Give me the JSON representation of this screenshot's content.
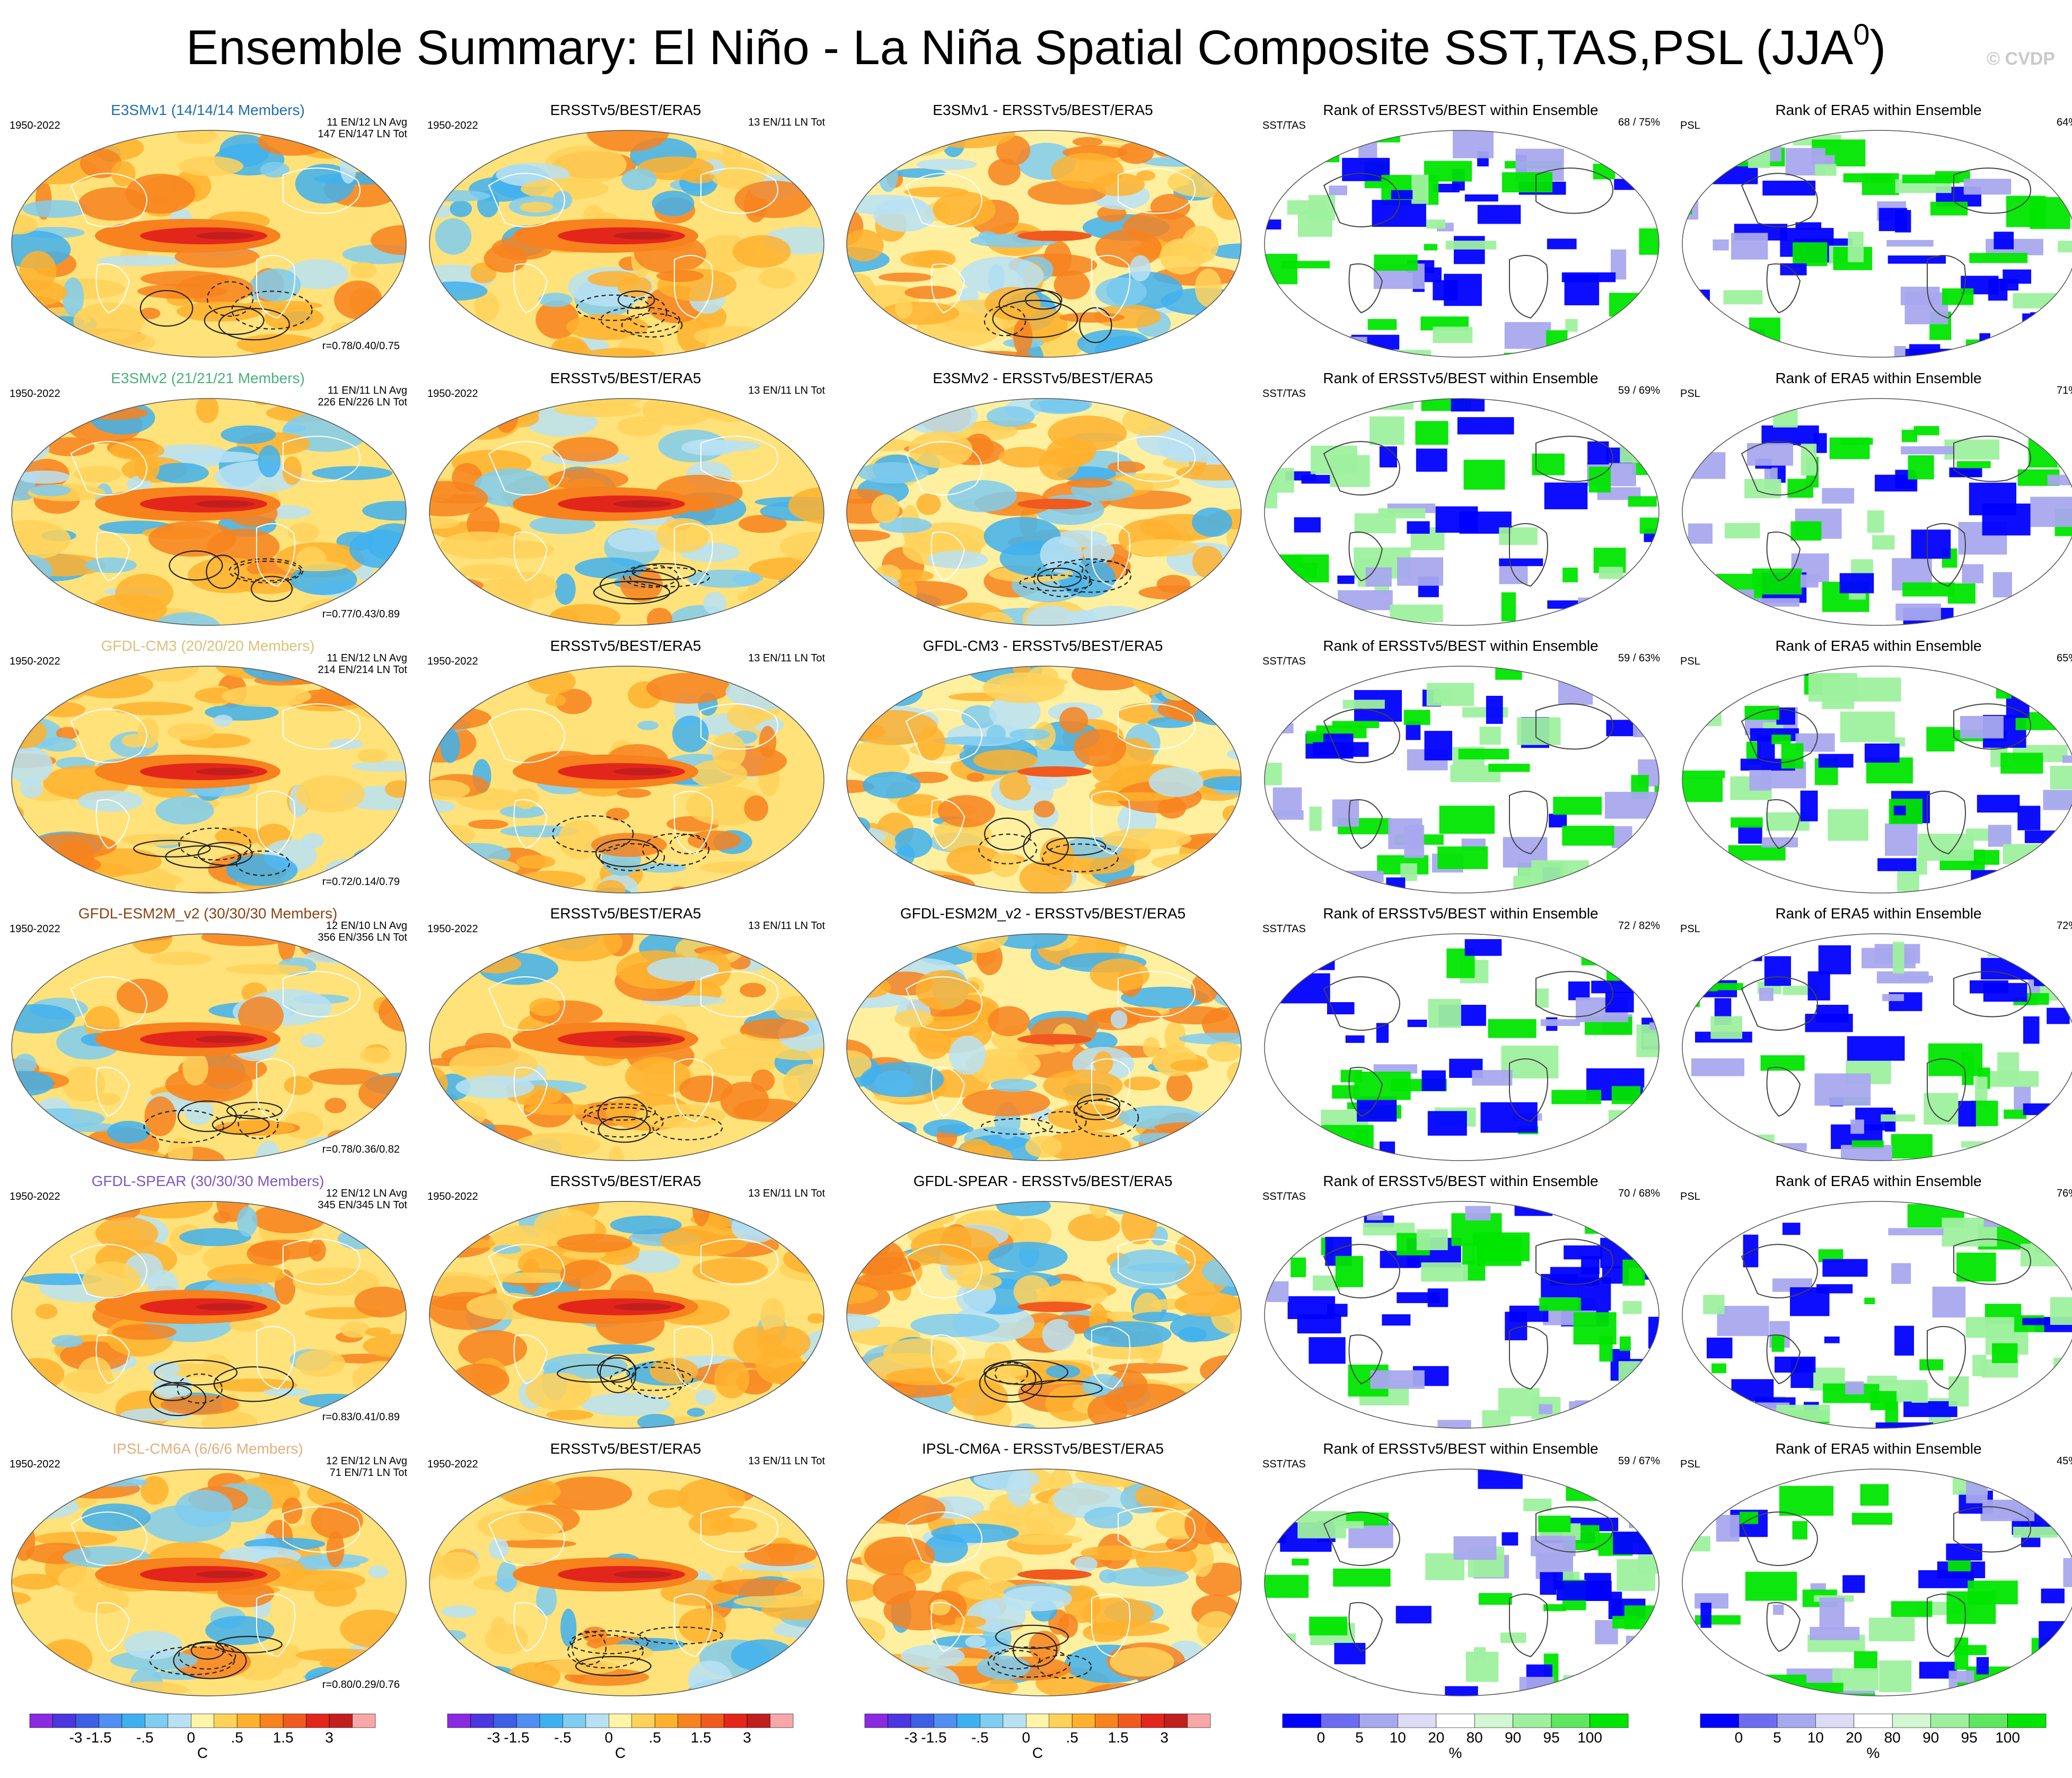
{
  "title": {
    "main": "Ensemble Summary: El Niño - La Niña Spatial Composite SST,TAS,PSL (JJA",
    "sup": "0",
    "close": ")"
  },
  "credit": "© CVDP",
  "column_titles": {
    "obs": "ERSSTv5/BEST/ERA5",
    "rank_sst": "Rank of ERSSTv5/BEST within Ensemble",
    "rank_psl": "Rank of ERA5 within Ensemble"
  },
  "period": "1950-2022",
  "obs_counts": "13 EN/11 LN Tot",
  "rank_labels": {
    "sst": "SST/TAS",
    "psl": "PSL"
  },
  "rows": [
    {
      "model": "E3SMv1",
      "model_title": "E3SMv1 (14/14/14 Members)",
      "title_color": "#1f6fa8",
      "avg": "11 EN/12 LN Avg",
      "tot": "147 EN/147 LN Tot",
      "r": "r=0.78/0.40/0.75",
      "diff_title": "E3SMv1 - ERSSTv5/BEST/ERA5",
      "rank_sst": "68 /  75%",
      "rank_psl": "64%"
    },
    {
      "model": "E3SMv2",
      "model_title": "E3SMv2 (21/21/21 Members)",
      "title_color": "#4caf7f",
      "avg": "11 EN/11 LN Avg",
      "tot": "226 EN/226 LN Tot",
      "r": "r=0.77/0.43/0.89",
      "diff_title": "E3SMv2 - ERSSTv5/BEST/ERA5",
      "rank_sst": "59 /  69%",
      "rank_psl": "71%"
    },
    {
      "model": "GFDL-CM3",
      "model_title": "GFDL-CM3 (20/20/20 Members)",
      "title_color": "#d9c27a",
      "avg": "11 EN/12 LN Avg",
      "tot": "214 EN/214 LN Tot",
      "r": "r=0.72/0.14/0.79",
      "diff_title": "GFDL-CM3 - ERSSTv5/BEST/ERA5",
      "rank_sst": "59 /  63%",
      "rank_psl": "65%"
    },
    {
      "model": "GFDL-ESM2M_v2",
      "model_title": "GFDL-ESM2M_v2 (30/30/30 Members)",
      "title_color": "#8b4513",
      "avg": "12 EN/10 LN Avg",
      "tot": "356 EN/356 LN Tot",
      "r": "r=0.78/0.36/0.82",
      "diff_title": "GFDL-ESM2M_v2 - ERSSTv5/BEST/ERA5",
      "rank_sst": "72 /  82%",
      "rank_psl": "72%"
    },
    {
      "model": "GFDL-SPEAR",
      "model_title": "GFDL-SPEAR (30/30/30 Members)",
      "title_color": "#7e57c2",
      "avg": "12 EN/12 LN Avg",
      "tot": "345 EN/345 LN Tot",
      "r": "r=0.83/0.41/0.89",
      "diff_title": "GFDL-SPEAR - ERSSTv5/BEST/ERA5",
      "rank_sst": "70 /  68%",
      "rank_psl": "76%"
    },
    {
      "model": "IPSL-CM6A",
      "model_title": "IPSL-CM6A (6/6/6 Members)",
      "title_color": "#e0b080",
      "avg": "12 EN/12 LN Avg",
      "tot": "71 EN/71 LN Tot",
      "r": "r=0.80/0.29/0.76",
      "diff_title": "IPSL-CM6A - ERSSTv5/BEST/ERA5",
      "rank_sst": "59 /  67%",
      "rank_psl": "45%"
    }
  ],
  "colorbars": {
    "temp": {
      "ticks": [
        "-3",
        "-1.5",
        "-.5",
        "0",
        ".5",
        "1.5",
        "3"
      ],
      "unit": "C",
      "colors": [
        "#8a2be2",
        "#4b36e0",
        "#3c5fe6",
        "#4f8ff2",
        "#3fb0ef",
        "#7fcdf0",
        "#b8e2f4",
        "#fff4a8",
        "#ffd25a",
        "#ffb12e",
        "#f7821e",
        "#f15a1e",
        "#e3261b",
        "#c21e1e",
        "#f7a7a7"
      ]
    },
    "rank": {
      "ticks": [
        "0",
        "5",
        "10",
        "20",
        "80",
        "90",
        "95",
        "100"
      ],
      "unit": "%",
      "colors": [
        "#0000ff",
        "#6c6cf2",
        "#a8a8ee",
        "#dcdcf6",
        "#ffffff",
        "#d2f7d2",
        "#9ef09e",
        "#5fe85f",
        "#00e600"
      ]
    }
  },
  "chart_data": {
    "type": "heatmap",
    "description_rows": [
      "E3SMv1",
      "E3SMv2",
      "GFDL-CM3",
      "GFDL-ESM2M_v2",
      "GFDL-SPEAR",
      "IPSL-CM6A"
    ],
    "pattern_correlations_sst_psl_tas": [
      [
        0.78,
        0.4,
        0.75
      ],
      [
        0.77,
        0.43,
        0.89
      ],
      [
        0.72,
        0.14,
        0.79
      ],
      [
        0.78,
        0.36,
        0.82
      ],
      [
        0.83,
        0.41,
        0.89
      ],
      [
        0.8,
        0.29,
        0.76
      ]
    ],
    "rank_sst_tas_pct": [
      [
        68,
        75
      ],
      [
        59,
        69
      ],
      [
        59,
        63
      ],
      [
        72,
        82
      ],
      [
        70,
        68
      ],
      [
        59,
        67
      ]
    ],
    "rank_psl_pct": [
      64,
      71,
      65,
      72,
      76,
      45
    ],
    "temp_levels_C": [
      -3,
      -2,
      -1.5,
      -1,
      -0.5,
      -0.25,
      0,
      0.25,
      0.5,
      1,
      1.5,
      2,
      3
    ],
    "rank_levels_pct": [
      0,
      5,
      10,
      20,
      80,
      90,
      95,
      100
    ]
  }
}
